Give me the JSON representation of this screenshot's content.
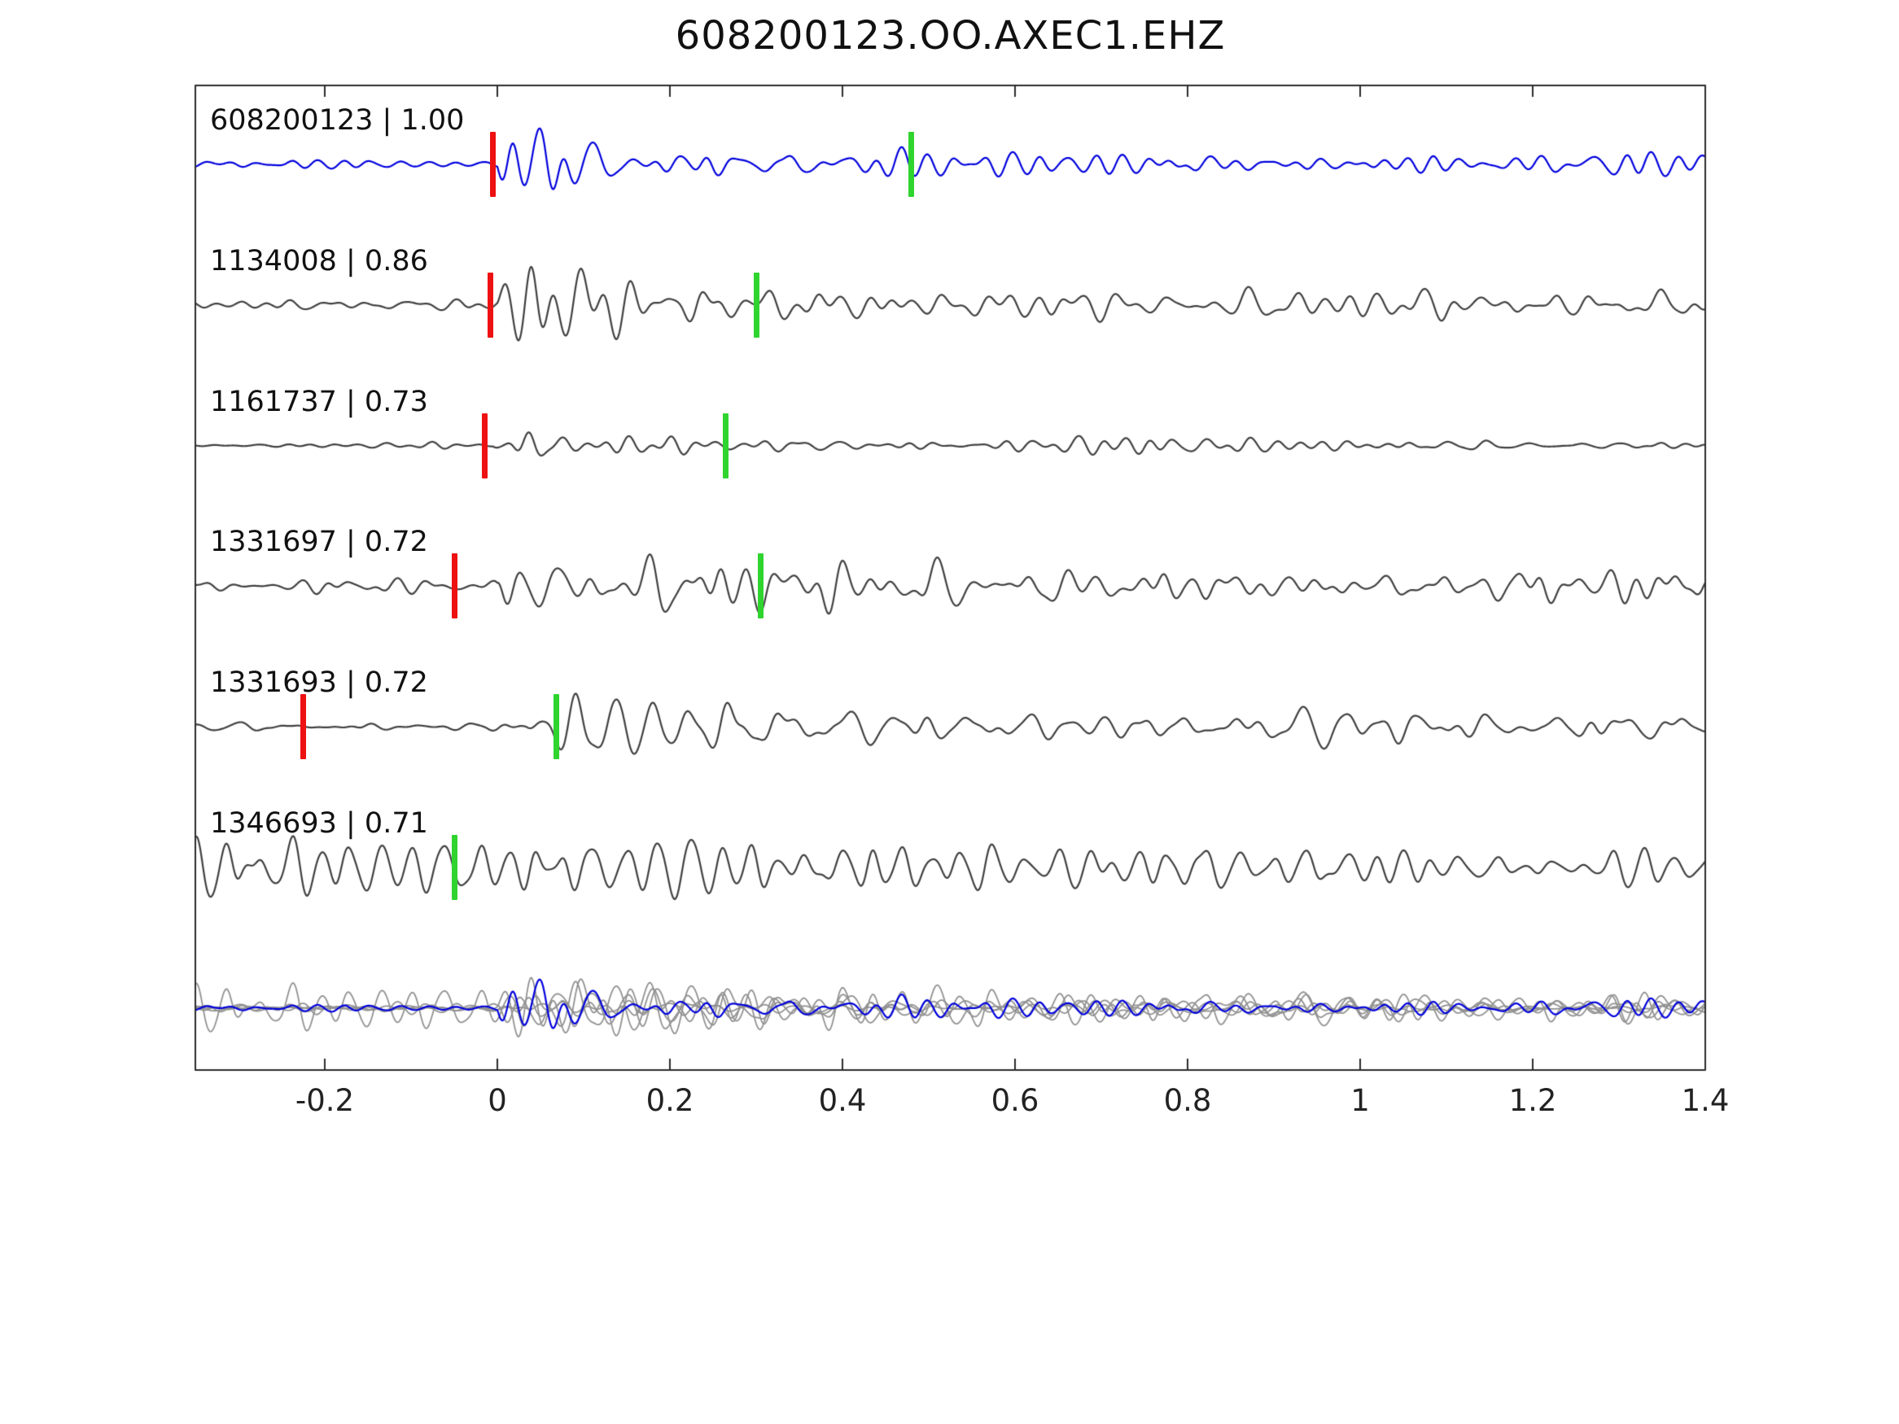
{
  "title": "608200123.OO.AXEC1.EHZ",
  "colors": {
    "axis": "#2b2b2b",
    "template_blue": "#0000dd",
    "detection_gray": "#3f3f3f",
    "overlay_gray": "#919191",
    "pick_red": "#ee1111",
    "pick_green": "#2fd42f",
    "background": "#ffffff"
  },
  "chart_data": {
    "type": "line",
    "title": "608200123.OO.AXEC1.EHZ",
    "description": "Seismic template waveform (blue, top row) compared with matched detection waveforms (gray rows). Red bars mark reference picks, green bars mark secondary picks. Bottom row shows all traces superimposed with the template in blue.",
    "xlim": [
      -0.35,
      1.4
    ],
    "x_ticks": [
      "-0.2",
      "0",
      "0.2",
      "0.4",
      "0.6",
      "0.8",
      "1",
      "1.2",
      "1.4"
    ],
    "x_tick_values": [
      -0.2,
      0,
      0.2,
      0.4,
      0.6,
      0.8,
      1,
      1.2,
      1.4
    ],
    "grid": false,
    "legend": false,
    "traces": [
      {
        "id": "608200123",
        "similarity": "1.00",
        "label": "608200123 | 1.00",
        "role": "template",
        "color": "#0000dd",
        "picks": {
          "red": -0.005,
          "green": 0.48
        },
        "synth": {
          "seed": 11,
          "t0": 0.0,
          "noise": 0.1,
          "peak": 0.95,
          "decay": 0.16,
          "tail": 0.18
        }
      },
      {
        "id": "1134008",
        "similarity": "0.86",
        "label": "1134008 | 0.86",
        "role": "detection",
        "color": "#3f3f3f",
        "picks": {
          "red": -0.008,
          "green": 0.3
        },
        "synth": {
          "seed": 23,
          "t0": 0.0,
          "noise": 0.13,
          "peak": 0.88,
          "decay": 0.22,
          "tail": 0.34
        }
      },
      {
        "id": "1161737",
        "similarity": "0.73",
        "label": "1161737 | 0.73",
        "role": "detection",
        "color": "#3f3f3f",
        "picks": {
          "red": -0.015,
          "green": 0.265
        },
        "synth": {
          "seed": 37,
          "t0": -0.005,
          "noise": 0.08,
          "peak": 0.95,
          "decay": 0.1,
          "tail": 0.13
        }
      },
      {
        "id": "1331697",
        "similarity": "0.72",
        "label": "1331697 | 0.72",
        "role": "detection",
        "color": "#3f3f3f",
        "picks": {
          "red": -0.05,
          "green": 0.305
        },
        "synth": {
          "seed": 41,
          "t0": 0.0,
          "noise": 0.18,
          "peak": 0.82,
          "decay": 0.26,
          "tail": 0.3
        }
      },
      {
        "id": "1331693",
        "similarity": "0.72",
        "label": "1331693 | 0.72",
        "role": "detection",
        "color": "#3f3f3f",
        "picks": {
          "red": -0.225,
          "green": 0.068
        },
        "synth": {
          "seed": 53,
          "t0": 0.03,
          "noise": 0.2,
          "peak": 0.75,
          "decay": 0.27,
          "tail": 0.26
        }
      },
      {
        "id": "1346693",
        "similarity": "0.71",
        "label": "1346693 | 0.71",
        "role": "detection",
        "color": "#3f3f3f",
        "picks": {
          "green": -0.05
        },
        "synth": {
          "seed": 67,
          "t0": -0.5,
          "noise": 0.3,
          "peak": 0.8,
          "decay": 0.5,
          "tail": 0.33
        }
      }
    ],
    "overlay": {
      "includes": "all traces superimposed, template in blue",
      "amp_scale": 0.8,
      "gray_color": "#919191"
    }
  }
}
